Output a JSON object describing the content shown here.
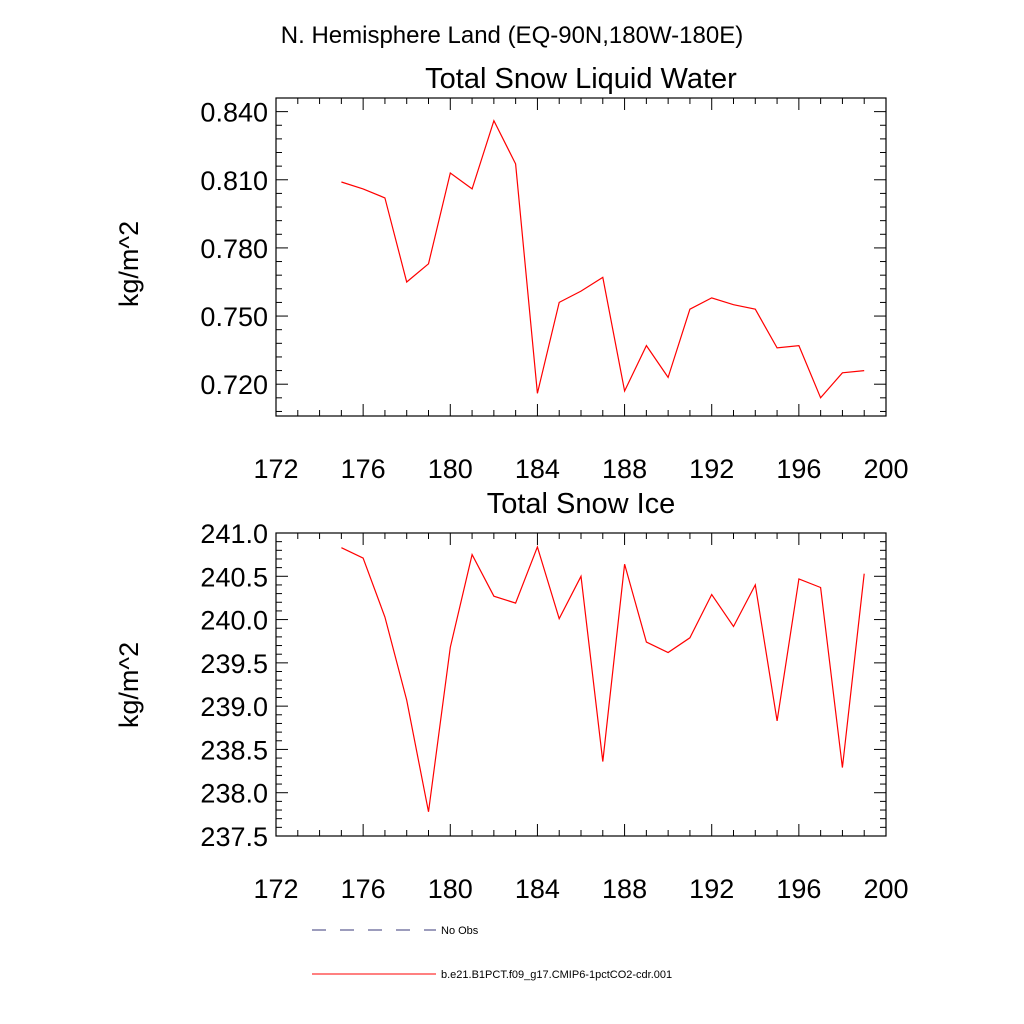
{
  "figure": {
    "suptitle": "N. Hemisphere Land (EQ-90N,180W-180E)"
  },
  "chart_data": [
    {
      "type": "line",
      "title": "Total Snow Liquid Water",
      "xlabel": "",
      "ylabel": "kg/m^2",
      "xlim": [
        172,
        200
      ],
      "ylim": [
        0.706,
        0.846
      ],
      "x_ticks": [
        172,
        176,
        180,
        184,
        188,
        192,
        196,
        200
      ],
      "x_tick_labels": [
        "172",
        "176",
        "180",
        "184",
        "188",
        "192",
        "196",
        "200"
      ],
      "y_ticks": [
        0.72,
        0.75,
        0.78,
        0.81,
        0.84
      ],
      "y_tick_labels": [
        "0.720",
        "0.750",
        "0.780",
        "0.810",
        "0.840"
      ],
      "y_minor_step": 0.006,
      "x_minor_step": 1,
      "grid": false,
      "series": [
        {
          "name": "b.e21.B1PCT.f09_g17.CMIP6-1pctCO2-cdr.001",
          "color": "#ff0000",
          "x": [
            175,
            176,
            177,
            178,
            179,
            180,
            181,
            182,
            183,
            184,
            185,
            186,
            187,
            188,
            189,
            190,
            191,
            192,
            193,
            194,
            195,
            196,
            197,
            198,
            199
          ],
          "values": [
            0.809,
            0.806,
            0.802,
            0.765,
            0.773,
            0.813,
            0.806,
            0.836,
            0.817,
            0.716,
            0.756,
            0.761,
            0.767,
            0.717,
            0.737,
            0.723,
            0.753,
            0.758,
            0.755,
            0.753,
            0.736,
            0.737,
            0.714,
            0.725,
            0.726
          ]
        }
      ]
    },
    {
      "type": "line",
      "title": "Total Snow Ice",
      "xlabel": "",
      "ylabel": "kg/m^2",
      "xlim": [
        172,
        200
      ],
      "ylim": [
        237.5,
        241.0
      ],
      "x_ticks": [
        172,
        176,
        180,
        184,
        188,
        192,
        196,
        200
      ],
      "x_tick_labels": [
        "172",
        "176",
        "180",
        "184",
        "188",
        "192",
        "196",
        "200"
      ],
      "y_ticks": [
        237.5,
        238.0,
        238.5,
        239.0,
        239.5,
        240.0,
        240.5,
        241.0
      ],
      "y_tick_labels": [
        "237.5",
        "238.0",
        "238.5",
        "239.0",
        "239.5",
        "240.0",
        "240.5",
        "241.0"
      ],
      "y_minor_step": 0.1,
      "x_minor_step": 1,
      "grid": false,
      "series": [
        {
          "name": "b.e21.B1PCT.f09_g17.CMIP6-1pctCO2-cdr.001",
          "color": "#ff0000",
          "x": [
            175,
            176,
            177,
            178,
            179,
            180,
            181,
            182,
            183,
            184,
            185,
            186,
            187,
            188,
            189,
            190,
            191,
            192,
            193,
            194,
            195,
            196,
            197,
            198,
            199
          ],
          "values": [
            240.83,
            240.71,
            240.03,
            239.07,
            237.78,
            239.68,
            240.75,
            240.27,
            240.19,
            240.84,
            240.01,
            240.5,
            238.36,
            240.64,
            239.74,
            239.62,
            239.79,
            240.29,
            239.92,
            240.4,
            238.83,
            240.47,
            240.37,
            238.29,
            240.53
          ]
        }
      ]
    }
  ],
  "legend": {
    "placement": "bottom",
    "items": [
      {
        "label": "No Obs",
        "color": "#3a3a7a",
        "style": "dashed"
      },
      {
        "label": "b.e21.B1PCT.f09_g17.CMIP6-1pctCO2-cdr.001",
        "color": "#ff0000",
        "style": "solid"
      }
    ]
  }
}
